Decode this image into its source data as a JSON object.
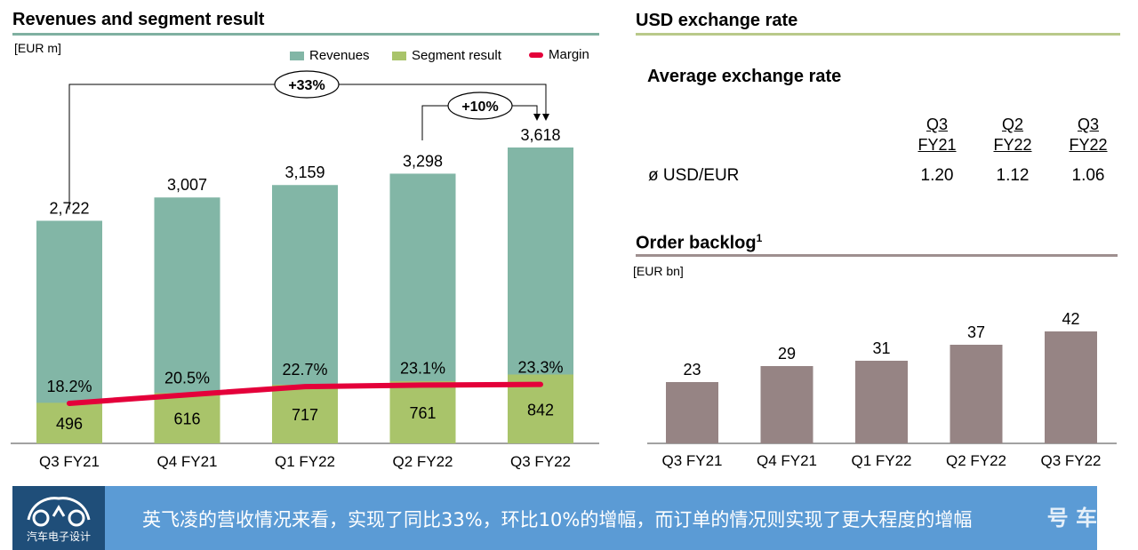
{
  "left_panel": {
    "title": "Revenues and segment result",
    "unit": "[EUR m]",
    "legend": [
      {
        "label": "Revenues",
        "color": "#82b6a6"
      },
      {
        "label": "Segment result",
        "color": "#a9c46a"
      },
      {
        "label": "Margin",
        "color": "#e4003a"
      }
    ],
    "annotations": [
      {
        "text": "+33%",
        "from": "Q3 FY21",
        "to": "Q3 FY22"
      },
      {
        "text": "+10%",
        "from": "Q2 FY22",
        "to": "Q3 FY22"
      }
    ]
  },
  "right_panel": {
    "fx_title": "USD exchange rate",
    "fx_subtitle": "Average exchange rate",
    "fx_columns": [
      {
        "line1": "Q3",
        "line2": "FY21"
      },
      {
        "line1": "Q2",
        "line2": "FY22"
      },
      {
        "line1": "Q3",
        "line2": "FY22"
      }
    ],
    "fx_row_label": "ø USD/EUR",
    "fx_values": [
      "1.20",
      "1.12",
      "1.06"
    ],
    "backlog_title": "Order backlog",
    "backlog_sup": "1",
    "backlog_unit": "[EUR bn]"
  },
  "chart_data": [
    {
      "type": "bar",
      "categories": [
        "Q3 FY21",
        "Q4 FY21",
        "Q1 FY22",
        "Q2 FY22",
        "Q3 FY22"
      ],
      "series": [
        {
          "name": "Revenues",
          "values": [
            2722,
            3007,
            3159,
            3298,
            3618
          ],
          "labels": [
            "2,722",
            "3,007",
            "3,159",
            "3,298",
            "3,618"
          ],
          "color": "#82b6a6"
        },
        {
          "name": "Segment result",
          "values": [
            496,
            616,
            717,
            761,
            842
          ],
          "labels": [
            "496",
            "616",
            "717",
            "761",
            "842"
          ],
          "color": "#a9c46a"
        },
        {
          "name": "Margin",
          "type": "line",
          "values": [
            18.2,
            20.5,
            22.7,
            23.1,
            23.3
          ],
          "labels": [
            "18.2%",
            "20.5%",
            "22.7%",
            "23.1%",
            "23.3%"
          ],
          "color": "#e4003a"
        }
      ],
      "ylim": [
        0,
        3618
      ]
    },
    {
      "type": "bar",
      "categories": [
        "Q3 FY21",
        "Q4 FY21",
        "Q1 FY22",
        "Q2 FY22",
        "Q3 FY22"
      ],
      "values": [
        23,
        29,
        31,
        37,
        42
      ],
      "color": "#968484",
      "ylim": [
        0,
        42
      ]
    }
  ],
  "subtitle_bar": {
    "logo_text": "汽车电子设计",
    "text": "英飞凌的营收情况来看，实现了同比33%，环比10%的增幅，而订单的情况则实现了更大程度的增幅",
    "watermark": "号 车"
  }
}
